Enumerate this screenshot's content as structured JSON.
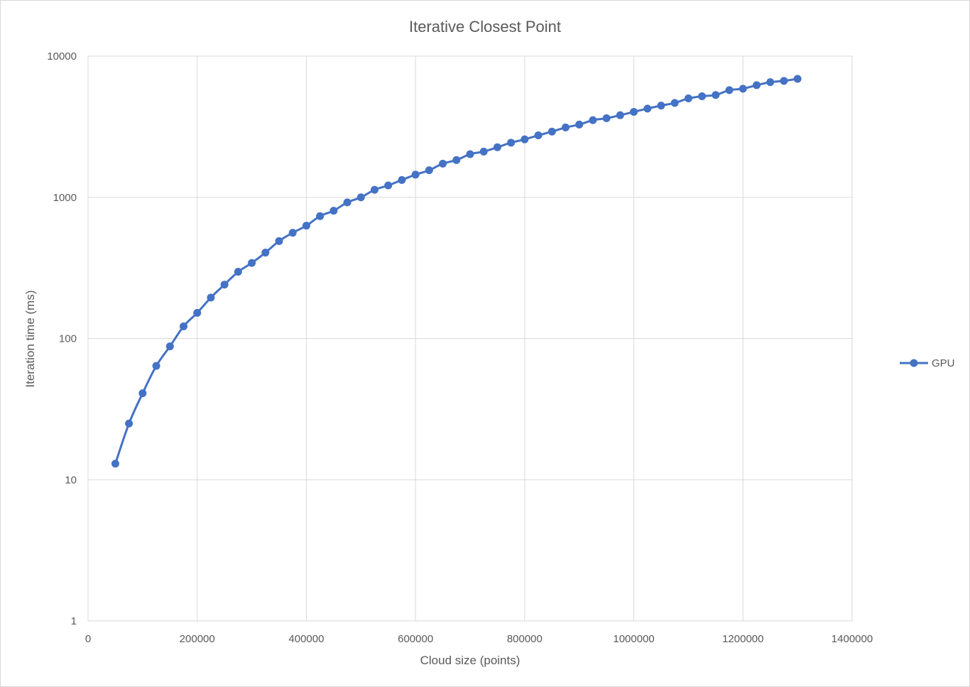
{
  "chart_data": {
    "type": "line",
    "title": "Iterative Closest Point",
    "xlabel": "Cloud size (points)",
    "ylabel": "Iteration time (ms)",
    "xlim": [
      0,
      1400000
    ],
    "ylim": [
      1,
      10000
    ],
    "yscale": "log",
    "grid": true,
    "legend": "right",
    "x_ticks": [
      "0",
      "200000",
      "400000",
      "600000",
      "800000",
      "1000000",
      "1200000",
      "1400000"
    ],
    "x_tick_values": [
      0,
      200000,
      400000,
      600000,
      800000,
      1000000,
      1200000,
      1400000
    ],
    "y_ticks": [
      "1",
      "10",
      "100",
      "1000",
      "10000"
    ],
    "y_tick_values": [
      1,
      10,
      100,
      1000,
      10000
    ],
    "series": [
      {
        "name": "GPU",
        "color": "#4472c4",
        "marker": "circle",
        "x": [
          50000,
          75000,
          100000,
          125000,
          150000,
          175000,
          200000,
          225000,
          250000,
          275000,
          300000,
          325000,
          350000,
          375000,
          400000,
          425000,
          450000,
          475000,
          500000,
          525000,
          550000,
          575000,
          600000,
          625000,
          650000,
          675000,
          700000,
          725000,
          750000,
          775000,
          800000,
          825000,
          850000,
          875000,
          900000,
          925000,
          950000,
          975000,
          1000000,
          1025000,
          1050000,
          1075000,
          1100000,
          1125000,
          1150000,
          1175000,
          1200000,
          1225000,
          1250000,
          1275000,
          1300000
        ],
        "values": [
          13,
          25,
          41,
          64,
          88,
          122,
          152,
          195,
          241,
          297,
          343,
          406,
          490,
          561,
          630,
          736,
          804,
          921,
          1000,
          1131,
          1214,
          1327,
          1448,
          1556,
          1732,
          1836,
          2022,
          2108,
          2262,
          2437,
          2573,
          2747,
          2921,
          3125,
          3277,
          3519,
          3632,
          3815,
          4030,
          4251,
          4464,
          4662,
          5017,
          5196,
          5307,
          5741,
          5876,
          6226,
          6540,
          6676,
          6900
        ]
      }
    ]
  }
}
